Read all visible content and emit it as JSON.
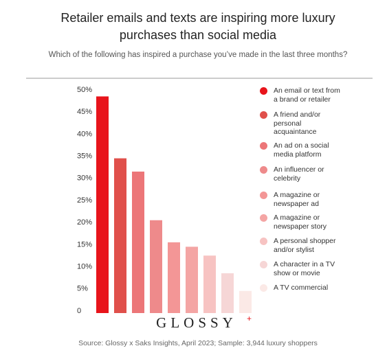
{
  "chart_data": {
    "type": "bar",
    "title": "Retailer emails and texts are inspiring more luxury",
    "title_line2": "purchases than social media",
    "subtitle": "Which of the following has inspired a purchase you’ve made in the last three months?",
    "categories": [
      "An email or text from a brand or retailer",
      "A friend and/or personal acquaintance",
      "An ad on a social media platform",
      "An influencer or celebrity",
      "A magazine or newspaper ad",
      "A magazine or newspaper story",
      "A personal shopper and/or stylist",
      "A character in a TV show or movie",
      "A TV commercial"
    ],
    "values": [
      49,
      35,
      32,
      21,
      16,
      15,
      13,
      9,
      5
    ],
    "colors": [
      "#e8141b",
      "#e0504b",
      "#ec7678",
      "#ee8a8b",
      "#f39696",
      "#f4a5a4",
      "#f7c3c2",
      "#f6d6d6",
      "#fbe9e6"
    ],
    "ylim": [
      0,
      50
    ],
    "yticks": [
      0,
      {
        "value": 5,
        "label": "5%"
      },
      {
        "value": 10,
        "label": "10%"
      },
      {
        "value": 15,
        "label": "15%"
      },
      {
        "value": 20,
        "label": "20%"
      },
      {
        "value": 25,
        "label": "25%"
      },
      {
        "value": 30,
        "label": "30%"
      },
      {
        "value": 35,
        "label": "35%"
      },
      {
        "value": 40,
        "label": "40%"
      },
      {
        "value": 45,
        "label": "45%"
      },
      {
        "value": 50,
        "label": "50%"
      }
    ],
    "grid": false,
    "logo": "GLOSSY",
    "logo_mark": "+",
    "source": "Source: Glossy x Saks Insights, April 2023; Sample: 3,944 luxury shoppers"
  }
}
